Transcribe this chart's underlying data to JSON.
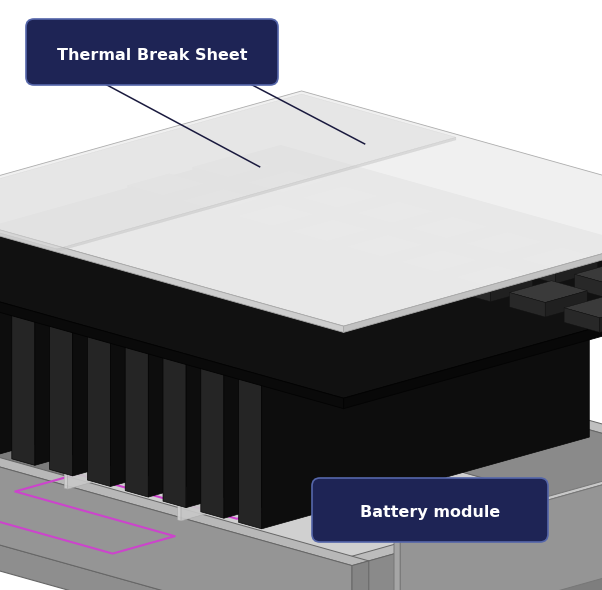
{
  "background_color": "#ffffff",
  "label_thermal": "Thermal Break Sheet",
  "label_battery": "Battery module",
  "label_bg_color": "#1e2455",
  "label_text_color": "#ffffff",
  "label_font_size": 11.5,
  "fig_width": 6.02,
  "fig_height": 5.9,
  "dpi": 100,
  "line_color": "#1a1a3e",
  "gray_base": "#b0b0b0",
  "gray_mid": "#909090",
  "gray_dark": "#6a6a6a",
  "black_cell": "#1a1a1a",
  "black_cell_side": "#0d0d0d",
  "white_sheet": "#e8e8e8",
  "tim_black": "#151515",
  "tim_pad": "#353535"
}
